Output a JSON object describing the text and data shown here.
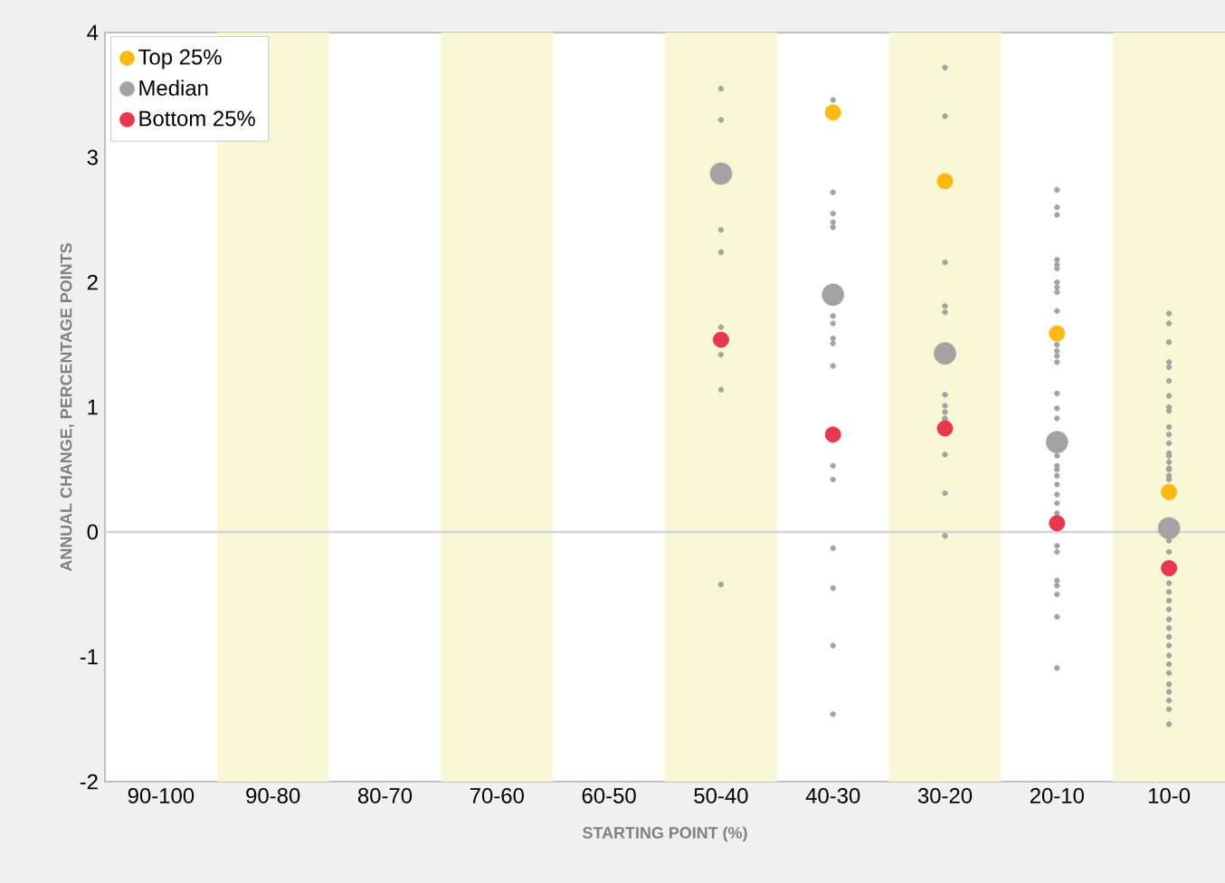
{
  "chart_data": {
    "type": "scatter",
    "xlabel": "STARTING POINT (%)",
    "ylabel": "ANNUAL CHANGE, PERCENTAGE POINTS",
    "categories": [
      "90-100",
      "90-80",
      "80-70",
      "70-60",
      "60-50",
      "50-40",
      "40-30",
      "30-20",
      "20-10",
      "10-0"
    ],
    "ylim": [
      -2,
      4
    ],
    "yticks": [
      -2,
      -1,
      0,
      1,
      2,
      3,
      4
    ],
    "legend": "top left",
    "bands": [
      {
        "axis": "x",
        "from": "90-80",
        "to": "90-80",
        "color": "#f7f7d6"
      },
      {
        "axis": "x",
        "from": "70-60",
        "to": "70-60",
        "color": "#f7f7d6"
      },
      {
        "axis": "x",
        "from": "50-40",
        "to": "50-40",
        "color": "#f7f7d6"
      },
      {
        "axis": "x",
        "from": "30-20",
        "to": "30-20",
        "color": "#f7f7d6"
      },
      {
        "axis": "x",
        "from": "10-0",
        "to": "10-0",
        "color": "#f7f7d6"
      }
    ],
    "ref_lines": [
      {
        "axis": "y",
        "value": 0,
        "color": "#d4d4d4"
      }
    ],
    "series": [
      {
        "name": "Top 25%",
        "color": "#fdb913",
        "values": [
          null,
          null,
          null,
          null,
          null,
          null,
          3.36,
          2.81,
          1.59,
          0.32
        ]
      },
      {
        "name": "Median",
        "color": "#a3a3a3",
        "values": [
          null,
          null,
          null,
          null,
          null,
          2.87,
          1.9,
          1.43,
          0.72,
          0.03
        ]
      },
      {
        "name": "Bottom 25%",
        "color": "#e8384f",
        "values": [
          null,
          null,
          null,
          null,
          null,
          1.54,
          0.78,
          0.83,
          0.07,
          -0.29
        ]
      },
      {
        "color": "#a3a3a3",
        "x": [
          "50-40",
          "50-40",
          "50-40",
          "50-40",
          "50-40",
          "50-40",
          "50-40",
          "50-40",
          "40-30",
          "40-30",
          "40-30",
          "40-30",
          "40-30",
          "40-30",
          "40-30",
          "40-30",
          "40-30",
          "40-30",
          "40-30",
          "40-30",
          "40-30",
          "40-30",
          "40-30",
          "40-30",
          "30-20",
          "30-20",
          "30-20",
          "30-20",
          "30-20",
          "30-20",
          "30-20",
          "30-20",
          "30-20",
          "30-20",
          "30-20",
          "30-20",
          "30-20",
          "20-10",
          "20-10",
          "20-10",
          "20-10",
          "20-10",
          "20-10",
          "20-10",
          "20-10",
          "20-10",
          "20-10",
          "20-10",
          "20-10",
          "20-10",
          "20-10",
          "20-10",
          "20-10",
          "20-10",
          "20-10",
          "20-10",
          "20-10",
          "20-10",
          "20-10",
          "20-10",
          "20-10",
          "20-10",
          "20-10",
          "20-10",
          "20-10",
          "20-10",
          "20-10",
          "20-10",
          "20-10",
          "10-0",
          "10-0",
          "10-0",
          "10-0",
          "10-0",
          "10-0",
          "10-0",
          "10-0",
          "10-0",
          "10-0",
          "10-0",
          "10-0",
          "10-0",
          "10-0",
          "10-0",
          "10-0",
          "10-0",
          "10-0",
          "10-0",
          "10-0",
          "10-0",
          "10-0",
          "10-0",
          "10-0",
          "10-0",
          "10-0",
          "10-0",
          "10-0",
          "10-0",
          "10-0",
          "10-0",
          "10-0",
          "10-0",
          "10-0",
          "10-0",
          "10-0",
          "10-0"
        ],
        "values": [
          3.55,
          3.3,
          2.42,
          2.24,
          1.64,
          1.42,
          1.14,
          -0.42,
          3.46,
          2.72,
          2.55,
          2.48,
          2.44,
          1.73,
          1.67,
          1.55,
          1.51,
          1.33,
          0.53,
          0.42,
          -0.13,
          -0.45,
          -0.91,
          -1.46,
          3.72,
          3.33,
          2.16,
          1.81,
          1.76,
          1.1,
          1.01,
          0.91,
          0.9,
          0.62,
          0.31,
          -0.03,
          0.96,
          2.74,
          2.6,
          2.54,
          2.18,
          2.14,
          2.11,
          2.0,
          1.96,
          1.92,
          1.77,
          1.5,
          1.45,
          1.41,
          1.36,
          1.11,
          0.99,
          0.91,
          0.61,
          0.53,
          0.45,
          0.38,
          0.3,
          0.23,
          0.15,
          -0.11,
          -0.16,
          -0.39,
          -0.43,
          -0.5,
          -0.68,
          -1.09,
          0.5,
          1.75,
          1.67,
          1.52,
          1.36,
          1.32,
          1.21,
          1.09,
          1.0,
          0.97,
          0.84,
          0.78,
          0.71,
          0.63,
          0.56,
          0.5,
          0.51,
          0.42,
          -0.07,
          -0.16,
          -0.41,
          -0.48,
          -0.55,
          -0.62,
          -0.7,
          -0.77,
          -0.84,
          -0.91,
          -0.99,
          -1.06,
          -1.13,
          -1.22,
          -1.28,
          -1.35,
          -1.42,
          -1.54,
          0.61,
          0.45
        ]
      }
    ]
  }
}
